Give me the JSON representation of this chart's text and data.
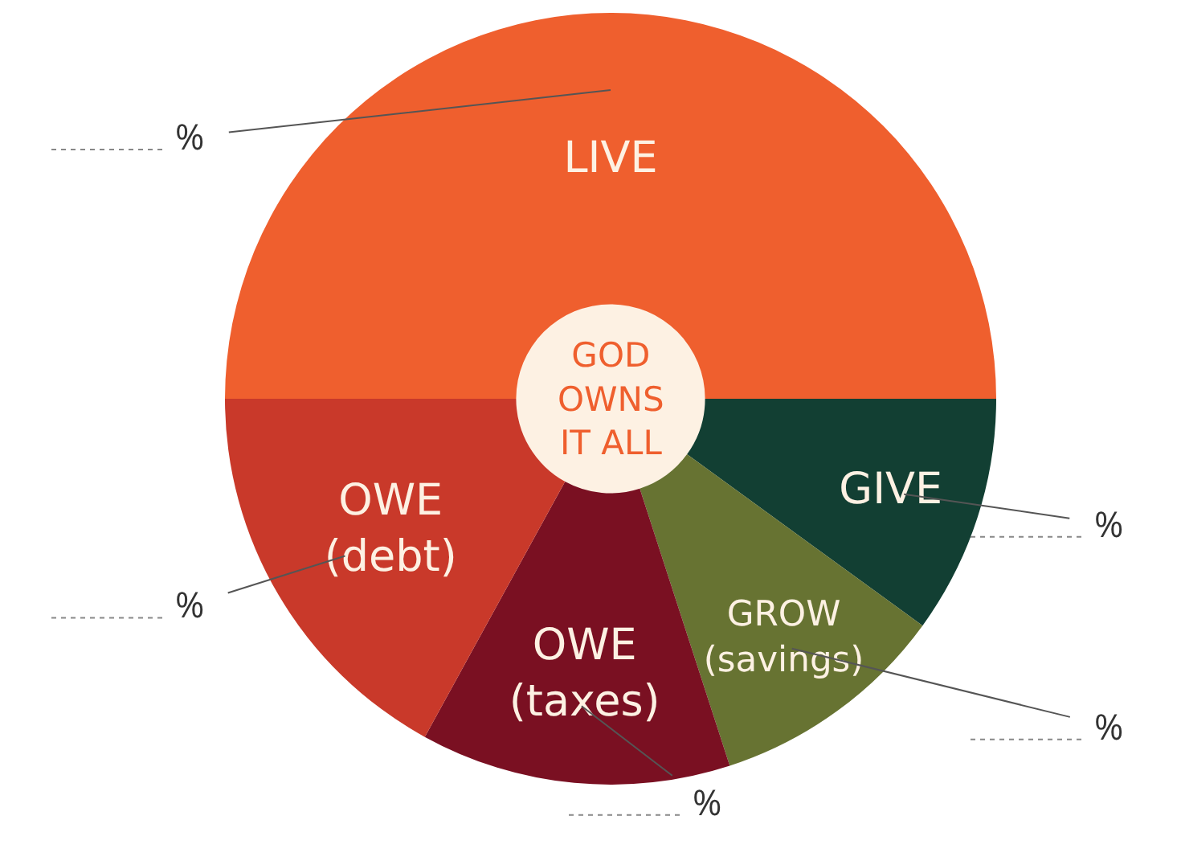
{
  "chart_data": {
    "type": "donut",
    "categories": [
      "LIVE",
      "GIVE",
      "GROW (savings)",
      "OWE (taxes)",
      "OWE (debt)"
    ],
    "values": [
      50,
      10,
      10,
      13,
      17
    ],
    "colors": [
      "#ef5f2e",
      "#123f33",
      "#677332",
      "#7a1022",
      "#c9392a"
    ],
    "value_labels": [
      "%",
      "%",
      "%",
      "%",
      "%"
    ],
    "annotations": [
      "GOD OWNS IT ALL"
    ],
    "legend": false
  }
}
